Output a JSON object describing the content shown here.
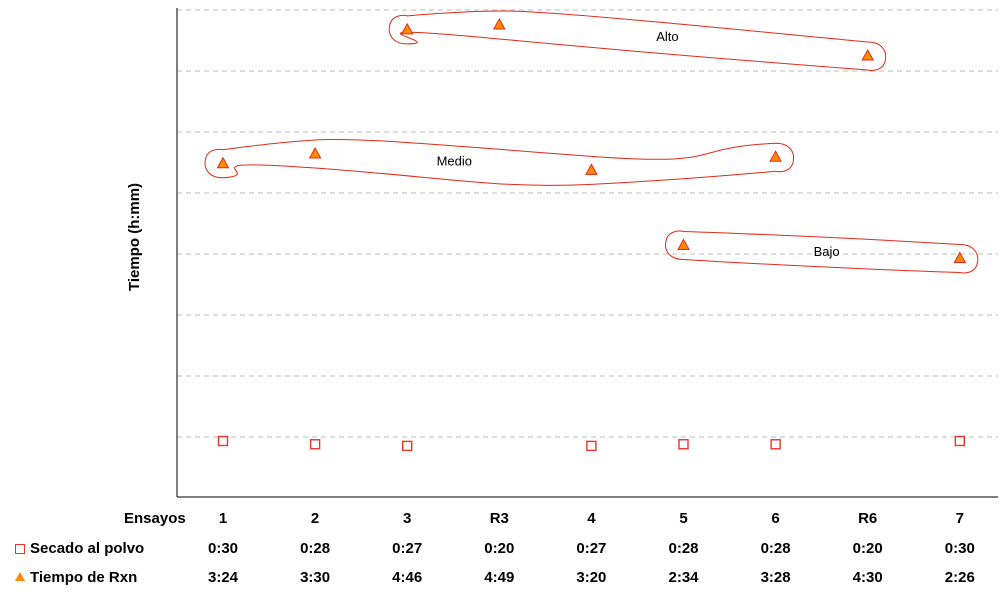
{
  "chart_data": {
    "type": "scatter",
    "ylabel": "Tiempo (h:mm)",
    "xlabel": "Ensayos",
    "categories": [
      "1",
      "2",
      "3",
      "R3",
      "4",
      "5",
      "6",
      "R6",
      "7"
    ],
    "ylim": [
      0,
      5
    ],
    "grid": true,
    "series": [
      {
        "name": "Secado al polvo",
        "marker": "square-open",
        "color": "#e8342a",
        "values": [
          "0:30",
          "0:28",
          "0:27",
          "0:20",
          "0:27",
          "0:28",
          "0:28",
          "0:20",
          "0:30"
        ],
        "hidden_points": [
          3,
          7
        ]
      },
      {
        "name": "Tiempo de Rxn",
        "marker": "triangle",
        "color": "#ff8c00",
        "values": [
          "3:24",
          "3:30",
          "4:46",
          "4:49",
          "3:20",
          "2:34",
          "3:28",
          "4:30",
          "2:26"
        ]
      }
    ],
    "annotations": [
      {
        "label": "Alto",
        "points": [
          2,
          3,
          7
        ]
      },
      {
        "label": "Medio",
        "points": [
          0,
          1,
          4,
          6
        ]
      },
      {
        "label": "Bajo",
        "points": [
          5,
          8
        ]
      }
    ]
  }
}
